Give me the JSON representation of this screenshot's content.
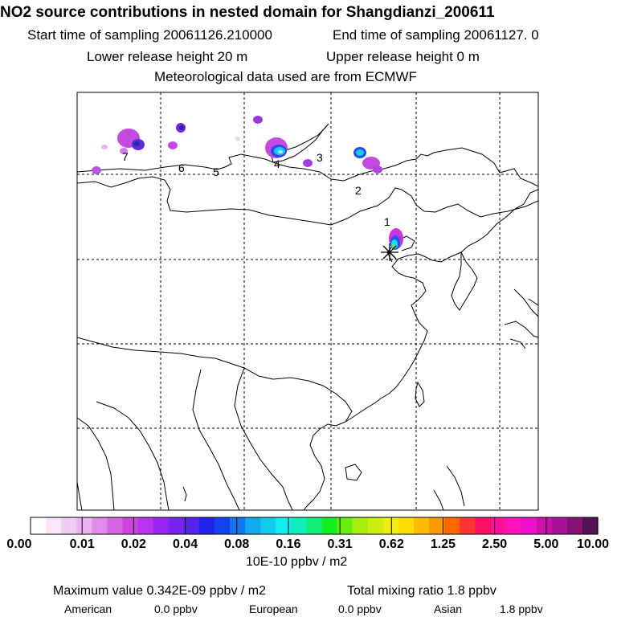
{
  "header": {
    "title": "NO2 source contributions in nested domain for Shangdianzi_200611",
    "start_label": "Start time of sampling 20061126.210000",
    "end_label": "End time of sampling 20061127.     0",
    "lower_release": "Lower release height   20 m",
    "upper_release": "Upper release height    0 m",
    "met_data": "Meteorological data used are from ECMWF"
  },
  "map": {
    "station_marker": "asterisk-station-marker",
    "route_labels": [
      "1",
      "2",
      "3",
      "4",
      "5",
      "6",
      "7"
    ]
  },
  "colorbar": {
    "ticks": [
      "0.00",
      "0.01",
      "0.02",
      "0.04",
      "0.08",
      "0.16",
      "0.31",
      "0.62",
      "1.25",
      "2.50",
      "5.00",
      "10.00"
    ],
    "units": "10E-10 ppbv / m2",
    "colors": [
      "#ffffff",
      "#f9e6fb",
      "#f3ccf6",
      "#edb2f1",
      "#e38be9",
      "#d866e2",
      "#cc44dd",
      "#bb33ee",
      "#9922ee",
      "#7722ee",
      "#5522ee",
      "#2222ee",
      "#1144ee",
      "#1177ee",
      "#11aaee",
      "#11ccee",
      "#11eeee",
      "#11eebb",
      "#11ee77",
      "#11ee22",
      "#66ee11",
      "#aaee11",
      "#ccee11",
      "#eeee11",
      "#ffdd00",
      "#ffbb00",
      "#ff9900",
      "#ff6600",
      "#ff3333",
      "#ff1166",
      "#ff1199",
      "#ff11bb",
      "#ee11cc",
      "#cc11aa",
      "#aa1199",
      "#881177",
      "#551155"
    ]
  },
  "footer": {
    "max_value": "Maximum value  0.342E-09 ppbv / m2",
    "total_mixing": "Total mixing ratio       1.8 ppbv",
    "american_label": "American",
    "american_value": "0.0 ppbv",
    "european_label": "European",
    "european_value": "0.0 ppbv",
    "asian_label": "Asian",
    "asian_value": "1.8 ppbv"
  }
}
